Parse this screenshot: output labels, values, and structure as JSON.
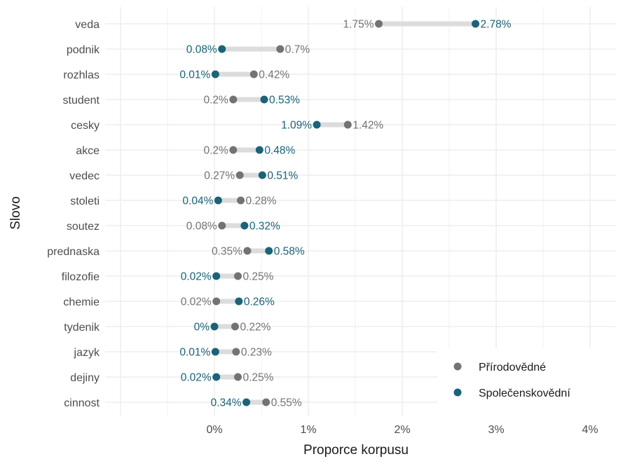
{
  "chart_data": {
    "type": "dumbbell",
    "xlabel": "Proporce korpusu",
    "ylabel": "Slovo",
    "x_ticks": [
      "0%",
      "1%",
      "2%",
      "3%",
      "4%"
    ],
    "x_tick_values": [
      0,
      1,
      2,
      3,
      4
    ],
    "xlim": [
      -1,
      4.1
    ],
    "grid": true,
    "legend_position": "bottom-right",
    "categories": [
      "veda",
      "podnik",
      "rozhlas",
      "student",
      "cesky",
      "akce",
      "vedec",
      "stoleti",
      "soutez",
      "prednaska",
      "filozofie",
      "chemie",
      "tydenik",
      "jazyk",
      "dejiny",
      "cinnost"
    ],
    "series": [
      {
        "name": "Přírodovědné",
        "color": "#737373",
        "values": [
          1.75,
          0.7,
          0.42,
          0.2,
          1.42,
          0.2,
          0.27,
          0.28,
          0.08,
          0.35,
          0.25,
          0.02,
          0.22,
          0.23,
          0.25,
          0.55
        ],
        "labels": [
          "1.75%",
          "0.7%",
          "0.42%",
          "0.2%",
          "1.42%",
          "0.2%",
          "0.27%",
          "0.28%",
          "0.08%",
          "0.35%",
          "0.25%",
          "0.02%",
          "0.22%",
          "0.23%",
          "0.25%",
          "0.55%"
        ]
      },
      {
        "name": "Společenskovědní",
        "color": "#1a6378",
        "values": [
          2.78,
          0.08,
          0.01,
          0.53,
          1.09,
          0.48,
          0.51,
          0.04,
          0.32,
          0.58,
          0.02,
          0.26,
          0.0,
          0.01,
          0.02,
          0.34
        ],
        "labels": [
          "2.78%",
          "0.08%",
          "0.01%",
          "0.53%",
          "1.09%",
          "0.48%",
          "0.51%",
          "0.04%",
          "0.32%",
          "0.58%",
          "0.02%",
          "0.26%",
          "0%",
          "0.01%",
          "0.02%",
          "0.34%"
        ]
      }
    ]
  }
}
